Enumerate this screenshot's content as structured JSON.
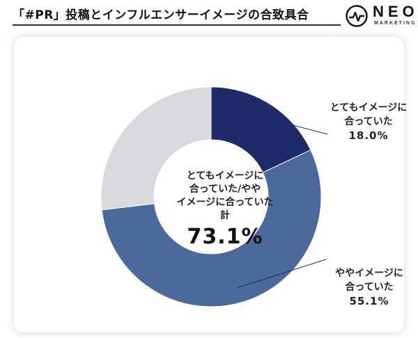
{
  "header": {
    "title": "「#PR」投稿とインフルエンサーイメージの合致具合",
    "logo_text": "NEO",
    "logo_subtext": "MARKETING"
  },
  "chart_data": {
    "type": "pie",
    "donut": true,
    "center_label": "とてもイメージに合っていた/ややイメージに合っていた計",
    "center_label_lines": [
      "とてもイメージに",
      "合っていた/やや",
      "イメージに合っていた",
      "計"
    ],
    "center_value": "73.1%",
    "slices": [
      {
        "label": "とてもイメージに合っていた",
        "label_lines": [
          "とてもイメージに",
          "合っていた"
        ],
        "value": 18.0,
        "display": "18.0%",
        "color": "#1f2a6b"
      },
      {
        "label": "ややイメージに合っていた",
        "label_lines": [
          "ややイメージに",
          "合っていた"
        ],
        "value": 55.1,
        "display": "55.1%",
        "color": "#4b6a9b"
      },
      {
        "label": "",
        "value": 26.9,
        "color": "#d9d8dc"
      }
    ]
  },
  "colors": {
    "accent": "#1c2b6b",
    "slice_dark": "#1f2a6b",
    "slice_mid": "#4b6a9b",
    "slice_light": "#d9d8dc"
  }
}
